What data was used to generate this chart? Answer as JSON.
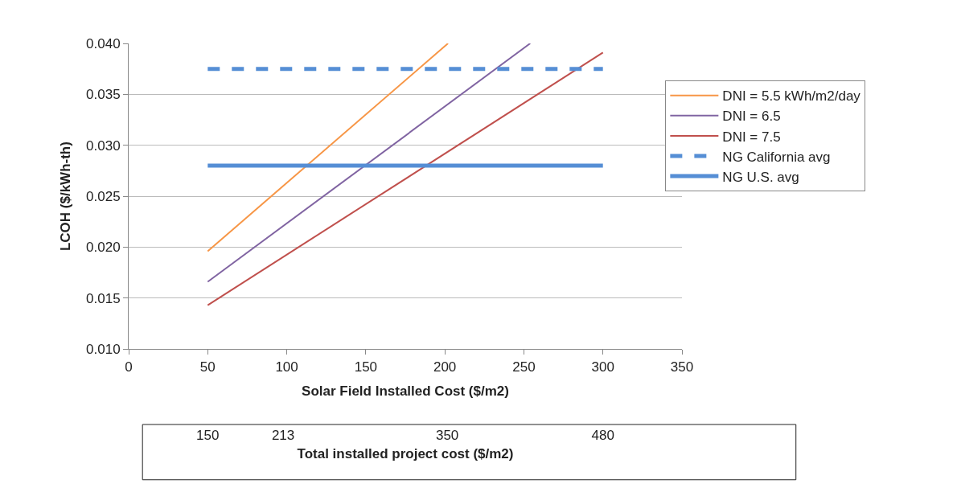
{
  "chart_data": {
    "type": "line",
    "xlabel": "Solar Field Installed Cost ($/m2)",
    "ylabel": "LCOH ($/kWh-th)",
    "xlim": [
      0,
      350
    ],
    "xticks": [
      0,
      50,
      100,
      150,
      200,
      250,
      300,
      350
    ],
    "ylim": [
      0.01,
      0.04
    ],
    "yticks": [
      {
        "value": 0.01,
        "label": "0.010"
      },
      {
        "value": 0.015,
        "label": "0.015"
      },
      {
        "value": 0.02,
        "label": "0.020"
      },
      {
        "value": 0.025,
        "label": "0.025"
      },
      {
        "value": 0.03,
        "label": "0.030"
      },
      {
        "value": 0.035,
        "label": "0.035"
      },
      {
        "value": 0.04,
        "label": "0.040"
      }
    ],
    "x2lim": [
      84,
      546
    ],
    "x2label": "Total installed project cost ($/m2)",
    "x2ticks": [
      150,
      213,
      350,
      480
    ],
    "grid": "y",
    "legend": "right",
    "marker": "none",
    "series": [
      {
        "name": "DNI = 5.5 kWh/m2/day",
        "color": "#f79646",
        "x": [
          50,
          202
        ],
        "values": [
          0.0196,
          0.04
        ]
      },
      {
        "name": "DNI = 6.5",
        "color": "#8064a2",
        "x": [
          50,
          254
        ],
        "values": [
          0.0166,
          0.04
        ]
      },
      {
        "name": "DNI = 7.5",
        "color": "#c0504d",
        "x": [
          50,
          300
        ],
        "values": [
          0.0143,
          0.0391
        ]
      },
      {
        "name": "NG California avg",
        "color": "#558ed5",
        "x": [
          50,
          300
        ],
        "values": [
          0.0375,
          0.0375
        ],
        "line_style": "dashed"
      },
      {
        "name": "NG U.S. avg",
        "color": "#558ed5",
        "x": [
          50,
          300
        ],
        "values": [
          0.028,
          0.028
        ],
        "line_style": "solid"
      }
    ]
  }
}
